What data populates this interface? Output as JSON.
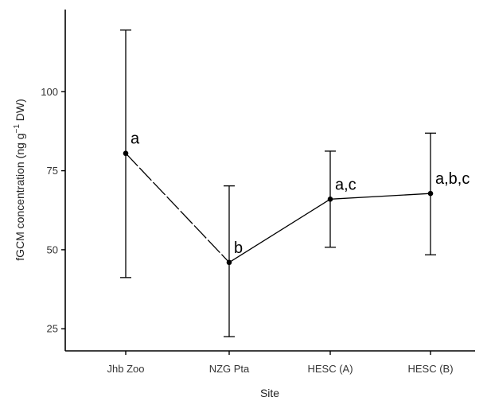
{
  "chart_data": {
    "type": "line",
    "title": "",
    "xlabel": "Site",
    "ylabel": {
      "main": "fGCM concentration (ng g",
      "sup": "−1",
      "end": " DW)"
    },
    "categories": [
      "Jhb Zoo",
      "NZG Pta",
      "HESC (A)",
      "HESC (B)"
    ],
    "series": [
      {
        "values": [
          80.5,
          46.0,
          66.0,
          67.8
        ],
        "error_low": [
          41.2,
          22.5,
          50.8,
          48.4
        ],
        "error_high": [
          119.5,
          70.2,
          81.2,
          86.9
        ],
        "significance_labels": [
          "a",
          "b",
          "a,c",
          "a,b,c"
        ],
        "line_style": [
          "dashed",
          "solid",
          "solid"
        ]
      }
    ],
    "yticks": [
      25,
      50,
      75,
      100
    ],
    "ylim": [
      18,
      126
    ],
    "grid": false,
    "legend": "none",
    "colors": {
      "line": "#000000",
      "axis": "#000000"
    }
  }
}
